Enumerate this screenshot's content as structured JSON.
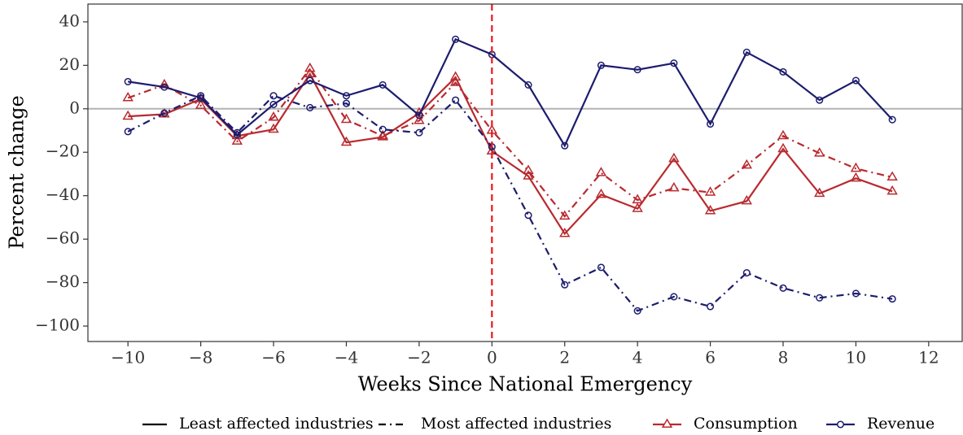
{
  "chart_data": {
    "type": "line",
    "x_label": "Weeks Since National Emergency",
    "y_label": "Percent change",
    "x": [
      -10,
      -9,
      -8,
      -7,
      -6,
      -5,
      -4,
      -3,
      -2,
      -1,
      0,
      1,
      2,
      3,
      4,
      5,
      6,
      7,
      8,
      9,
      10,
      11
    ],
    "linetypes": [
      {
        "name": "Least affected industries",
        "dash": "none"
      },
      {
        "name": "Most affected industries",
        "dash": "9 5 2 5"
      }
    ],
    "series": [
      {
        "name": "Consumption",
        "color": "#b82a2f",
        "marker": "triangle",
        "values": [
          [
            -3.5,
            -2.5,
            4.5,
            -12.5,
            -9.5,
            16,
            -15.5,
            -13,
            -2,
            14.5,
            -19.5,
            -31,
            -57.5,
            -39.5,
            -46,
            -23,
            -47,
            -42.5,
            -18.5,
            -39,
            -32,
            -38
          ],
          [
            5,
            11,
            1.5,
            -15,
            -4,
            18.5,
            -5,
            -12.5,
            -5.5,
            12,
            -10,
            -28.5,
            -49.5,
            -29.5,
            -42,
            -36.5,
            -38.5,
            -26,
            -12.5,
            -20.5,
            -27.5,
            -31.5
          ]
        ]
      },
      {
        "name": "Revenue",
        "color": "#1c1c6e",
        "marker": "circle",
        "values": [
          [
            12.5,
            10,
            5,
            -12,
            2,
            13,
            6,
            11,
            -3,
            32,
            25,
            11,
            -17,
            20,
            18,
            21,
            -7,
            26,
            17,
            4,
            13,
            -5
          ],
          [
            -10.5,
            -2,
            6,
            -11,
            6,
            0.5,
            2.5,
            -9.5,
            -11,
            4,
            -17.5,
            -49,
            -81,
            -73,
            -93,
            -86.5,
            -91,
            -75.5,
            -82.5,
            -87,
            -85,
            -87.5
          ]
        ]
      }
    ],
    "xlim": [
      -11.1,
      12.92
    ],
    "ylim": [
      -107.1,
      48.2
    ],
    "xticks": [
      {
        "value": -10,
        "label": "−10"
      },
      {
        "value": -8,
        "label": "−8"
      },
      {
        "value": -6,
        "label": "−6"
      },
      {
        "value": -4,
        "label": "−4"
      },
      {
        "value": -2,
        "label": "−2"
      },
      0,
      2,
      4,
      6,
      8,
      10,
      12
    ],
    "yticks": [
      {
        "value": -100,
        "label": "−100"
      },
      {
        "value": -80,
        "label": "−80"
      },
      {
        "value": -60,
        "label": "−60"
      },
      {
        "value": -40,
        "label": "−40"
      },
      {
        "value": -20,
        "label": "−20"
      },
      0,
      20,
      40
    ],
    "hline": {
      "value": 0,
      "color": "#b3b3b3"
    },
    "vline": {
      "value": 0,
      "color": "#e8191c"
    },
    "grid": false
  }
}
